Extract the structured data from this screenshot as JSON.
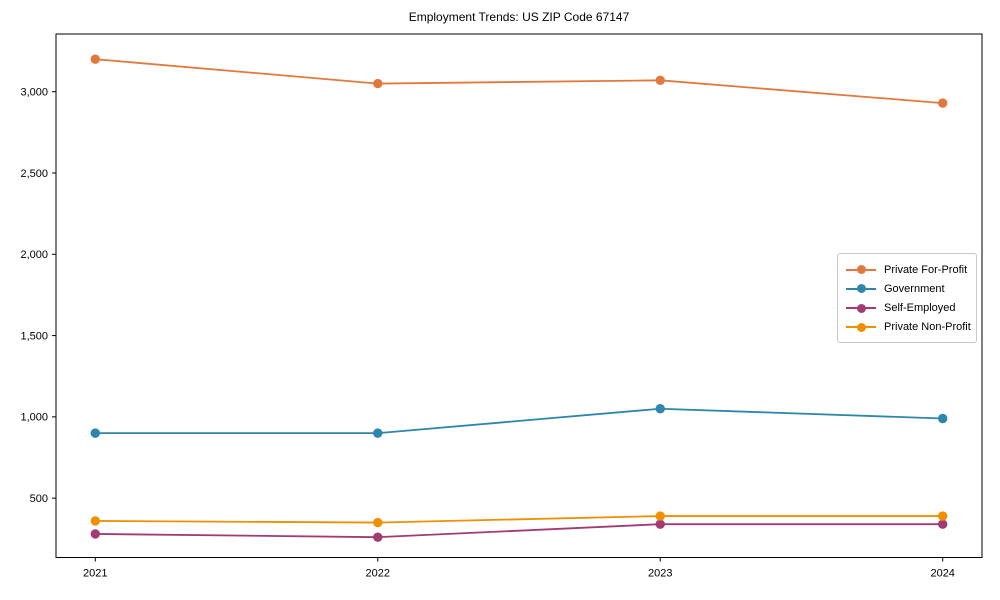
{
  "figure": {
    "title": "Employment Trends: US ZIP Code 67147"
  },
  "chart_data": {
    "type": "line",
    "title": "Employment Trends: US ZIP Code 67147",
    "x": [
      "2021",
      "2022",
      "2023",
      "2024"
    ],
    "series": [
      {
        "name": "Private For-Profit",
        "color": "#E1793E",
        "values": [
          3200,
          3050,
          3070,
          2930
        ]
      },
      {
        "name": "Government",
        "color": "#2E86AB",
        "values": [
          900,
          900,
          1050,
          990
        ]
      },
      {
        "name": "Self-Employed",
        "color": "#A23B72",
        "values": [
          280,
          260,
          340,
          340
        ]
      },
      {
        "name": "Private Non-Profit",
        "color": "#F18F01",
        "values": [
          360,
          350,
          390,
          390
        ]
      }
    ],
    "xlabel": "",
    "ylabel": "",
    "ylim": [
      135,
      3355
    ],
    "yticks": [
      500,
      1000,
      1500,
      2000,
      2500,
      3000
    ],
    "grid": false,
    "legend_position": "center-right",
    "background": "#ffffff",
    "spine_color": "#000000"
  }
}
